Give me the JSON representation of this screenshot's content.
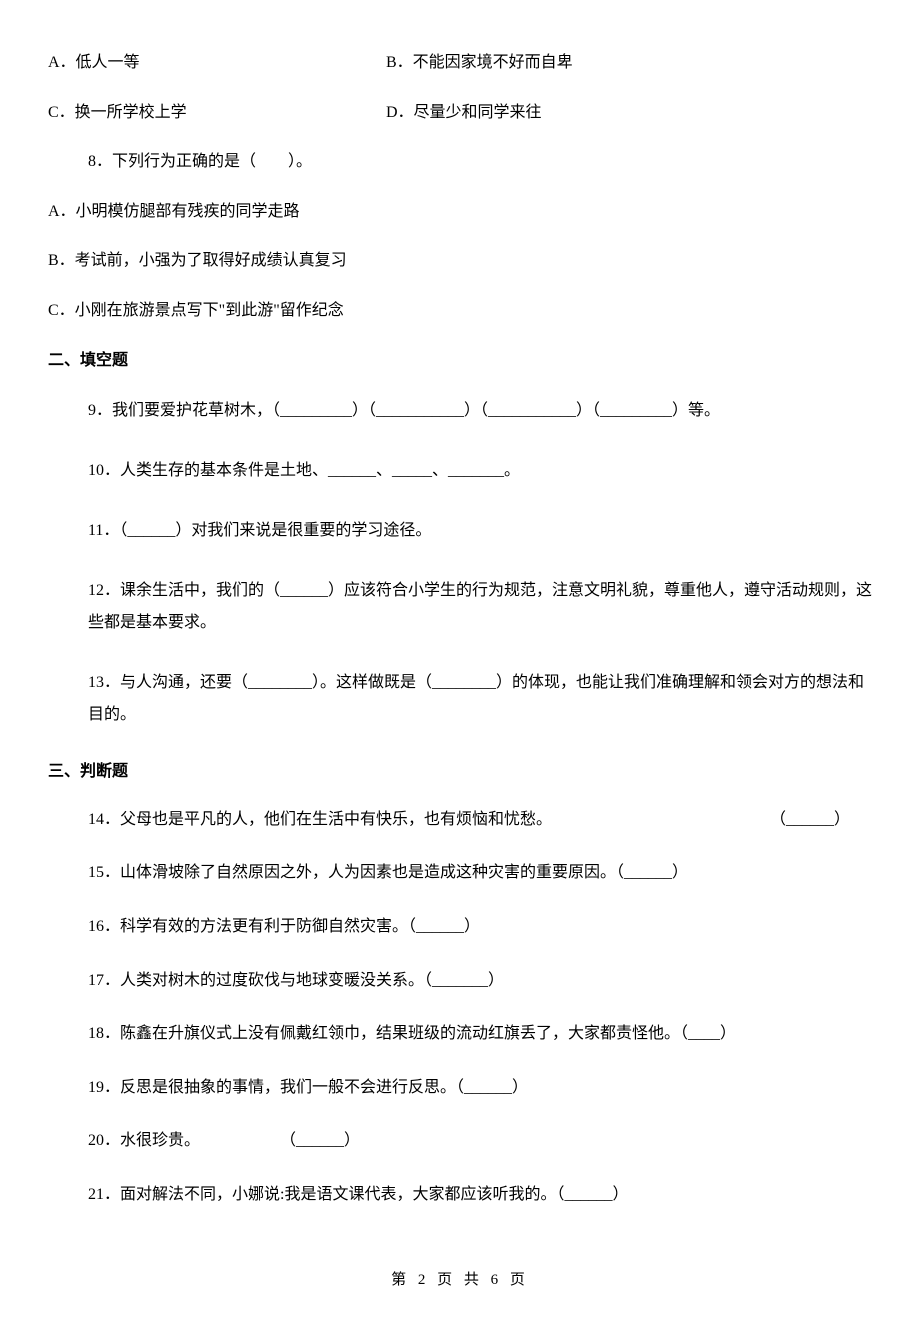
{
  "q7_options": {
    "A": "A．低人一等",
    "B": "B．不能因家境不好而自卑",
    "C": "C．换一所学校上学",
    "D": "D．尽量少和同学来往"
  },
  "q8": {
    "stem": "8．下列行为正确的是（　　）。",
    "A": "A．小明模仿腿部有残疾的同学走路",
    "B": "B．考试前，小强为了取得好成绩认真复习",
    "C": "C．小刚在旅游景点写下\"到此游\"留作纪念"
  },
  "section2": "二、填空题",
  "q9": "9．我们要爱护花草树木，（_________）（___________）（___________）（_________）等。",
  "q10": "10．人类生存的基本条件是土地、______、_____、_______。",
  "q11": "11．（______）对我们来说是很重要的学习途径。",
  "q12": "12．课余生活中，我们的（______）应该符合小学生的行为规范，注意文明礼貌，尊重他人，遵守活动规则，这些都是基本要求。",
  "q13": "13．与人沟通，还要（________）。这样做既是（________）的体现，也能让我们准确理解和领会对方的想法和目的。",
  "section3": "三、判断题",
  "q14_text": "14．父母也是平凡的人，他们在生活中有快乐，也有烦恼和忧愁。",
  "q14_blank": "（______）",
  "q15": "15．山体滑坡除了自然原因之外，人为因素也是造成这种灾害的重要原因。（______）",
  "q16": "16．科学有效的方法更有利于防御自然灾害。（______）",
  "q17": "17．人类对树木的过度砍伐与地球变暖没关系。（_______）",
  "q18": "18．陈鑫在升旗仪式上没有佩戴红领巾，结果班级的流动红旗丢了，大家都责怪他。（____）",
  "q19": "19．反思是很抽象的事情，我们一般不会进行反思。（______）",
  "q20": "20．水很珍贵。　　　　　　（______）",
  "q21": "21．面对解法不同，小娜说:我是语文课代表，大家都应该听我的。（______）",
  "footer": "第 2 页 共 6 页"
}
